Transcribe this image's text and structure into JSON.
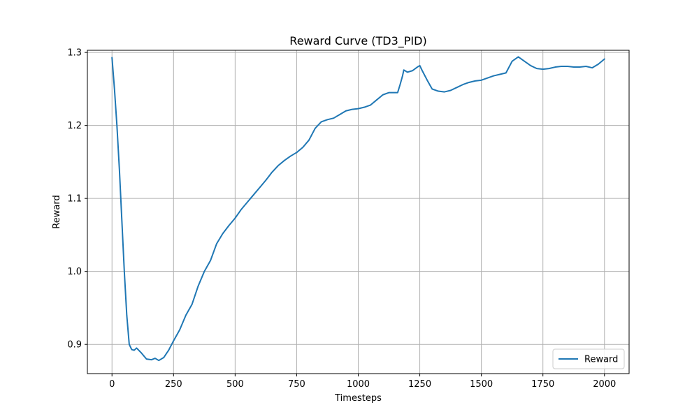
{
  "chart_data": {
    "type": "line",
    "title": "Reward Curve (TD3_PID)",
    "xlabel": "Timesteps",
    "ylabel": "Reward",
    "xlim": [
      -100,
      2100
    ],
    "ylim": [
      0.86,
      1.303
    ],
    "xticks": [
      0,
      250,
      500,
      750,
      1000,
      1250,
      1500,
      1750,
      2000
    ],
    "yticks": [
      0.9,
      1.0,
      1.1,
      1.2,
      1.3
    ],
    "xtick_labels": [
      "0",
      "250",
      "500",
      "750",
      "1000",
      "1250",
      "1500",
      "1750",
      "2000"
    ],
    "ytick_labels": [
      "0.9",
      "1.0",
      "1.1",
      "1.2",
      "1.3"
    ],
    "grid": true,
    "legend": "bottom-right",
    "series": [
      {
        "name": "Reward",
        "color": "#1f77b4",
        "x": [
          0,
          10,
          20,
          30,
          40,
          50,
          60,
          70,
          80,
          90,
          100,
          120,
          140,
          160,
          175,
          190,
          210,
          230,
          250,
          275,
          300,
          325,
          350,
          375,
          400,
          425,
          450,
          475,
          500,
          525,
          550,
          575,
          600,
          625,
          650,
          675,
          700,
          725,
          750,
          775,
          800,
          825,
          850,
          875,
          900,
          925,
          950,
          975,
          1000,
          1025,
          1050,
          1075,
          1100,
          1125,
          1150,
          1160,
          1170,
          1175,
          1180,
          1185,
          1190,
          1200,
          1220,
          1240,
          1250,
          1260,
          1280,
          1300,
          1325,
          1350,
          1375,
          1400,
          1425,
          1450,
          1475,
          1500,
          1525,
          1550,
          1575,
          1600,
          1625,
          1650,
          1675,
          1700,
          1725,
          1750,
          1775,
          1800,
          1825,
          1850,
          1875,
          1900,
          1925,
          1950,
          1975,
          2000
        ],
        "y": [
          1.293,
          1.25,
          1.2,
          1.14,
          1.07,
          1.0,
          0.94,
          0.9,
          0.893,
          0.892,
          0.895,
          0.888,
          0.88,
          0.879,
          0.881,
          0.878,
          0.882,
          0.892,
          0.905,
          0.92,
          0.94,
          0.955,
          0.98,
          1.0,
          1.015,
          1.038,
          1.052,
          1.063,
          1.073,
          1.085,
          1.095,
          1.105,
          1.115,
          1.125,
          1.136,
          1.145,
          1.152,
          1.158,
          1.163,
          1.17,
          1.18,
          1.196,
          1.205,
          1.208,
          1.21,
          1.215,
          1.22,
          1.222,
          1.223,
          1.225,
          1.228,
          1.235,
          1.242,
          1.245,
          1.245,
          1.245,
          1.256,
          1.262,
          1.268,
          1.276,
          1.275,
          1.273,
          1.275,
          1.28,
          1.282,
          1.275,
          1.262,
          1.25,
          1.247,
          1.246,
          1.248,
          1.252,
          1.256,
          1.259,
          1.261,
          1.262,
          1.265,
          1.268,
          1.27,
          1.272,
          1.288,
          1.294,
          1.288,
          1.282,
          1.278,
          1.277,
          1.278,
          1.28,
          1.281,
          1.281,
          1.28,
          1.28,
          1.281,
          1.279,
          1.284,
          1.291
        ]
      }
    ]
  }
}
